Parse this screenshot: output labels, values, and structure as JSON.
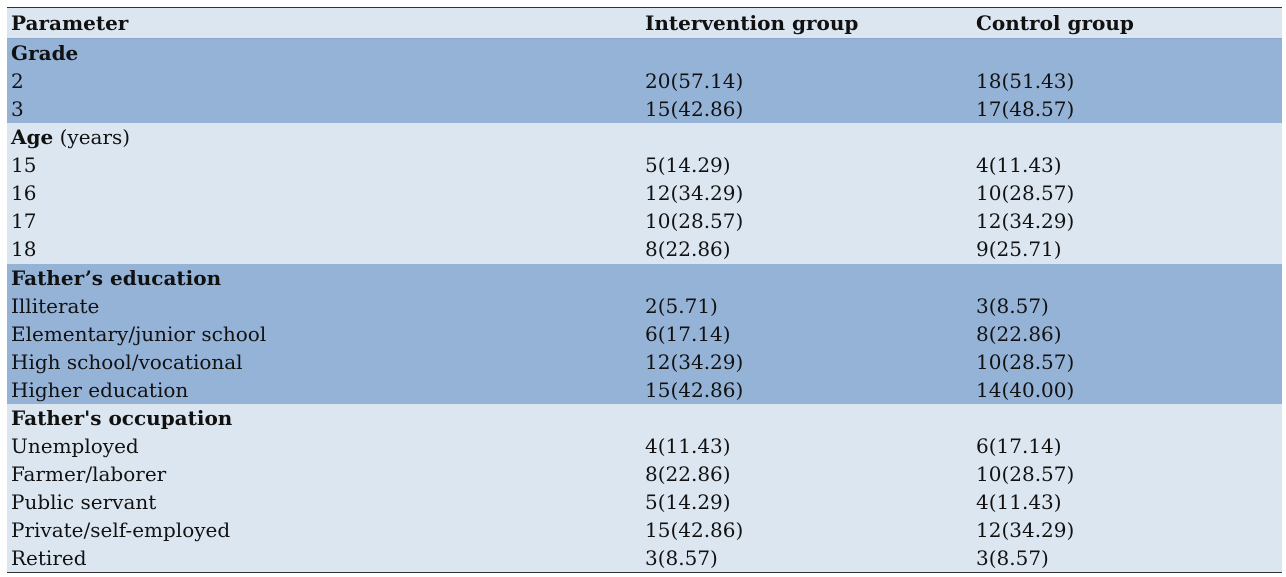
{
  "columns": [
    "Parameter",
    "Intervention group",
    "Control group"
  ],
  "sections": [
    {
      "title": "Grade",
      "unit": "",
      "shade": "dark",
      "rows": [
        [
          "2",
          "20(57.14)",
          "18(51.43)"
        ],
        [
          "3",
          "15(42.86)",
          "17(48.57)"
        ]
      ]
    },
    {
      "title": "Age",
      "unit": " (years)",
      "shade": "light",
      "rows": [
        [
          "15",
          "5(14.29)",
          "4(11.43)"
        ],
        [
          "16",
          "12(34.29)",
          "10(28.57)"
        ],
        [
          "17",
          "10(28.57)",
          "12(34.29)"
        ],
        [
          "18",
          "8(22.86)",
          "9(25.71)"
        ]
      ]
    },
    {
      "title": "Father’s education",
      "unit": "",
      "shade": "dark",
      "rows": [
        [
          "Illiterate",
          "2(5.71)",
          "3(8.57)"
        ],
        [
          "Elementary/junior school",
          "6(17.14)",
          "8(22.86)"
        ],
        [
          "High school/vocational",
          "12(34.29)",
          "10(28.57)"
        ],
        [
          "Higher education",
          "15(42.86)",
          "14(40.00)"
        ]
      ]
    },
    {
      "title": "Father's occupation",
      "unit": "",
      "shade": "light",
      "rows": [
        [
          "Unemployed",
          "4(11.43)",
          "6(17.14)"
        ],
        [
          "Farmer/laborer",
          "8(22.86)",
          "10(28.57)"
        ],
        [
          "Public servant",
          "5(14.29)",
          "4(11.43)"
        ],
        [
          "Private/self-employed",
          "15(42.86)",
          "12(34.29)"
        ],
        [
          "Retired",
          "3(8.57)",
          "3(8.57)"
        ]
      ]
    }
  ],
  "colors": {
    "light_band": "#dce6f1",
    "dark_band": "#95b3d7",
    "rule": "#333333"
  }
}
